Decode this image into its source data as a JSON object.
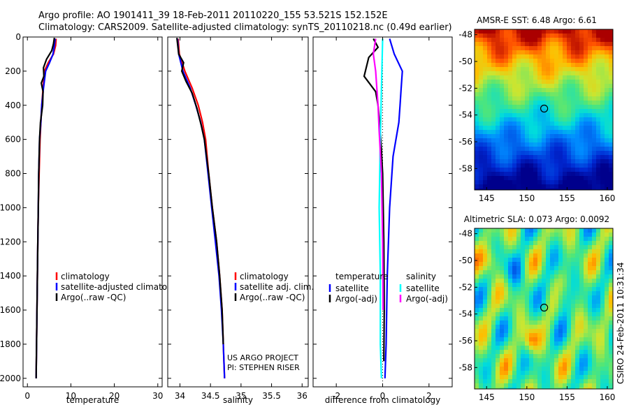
{
  "header": {
    "line1": "Argo profile: AO 1901411_39 18-Feb-2011 20110220_155 53.521S 152.152E",
    "line2": "Climatology: CARS2009. Satellite-adjusted climatology: synTS_20110218.nc (0.49d earlier)"
  },
  "side_label": "CSIRO 24-Feb-2011 10:31:34",
  "colors": {
    "red": "#ff0000",
    "blue": "#0000ff",
    "black": "#000000",
    "cyan": "#00ffff",
    "magenta": "#ff00ff"
  },
  "chart_data": [
    {
      "type": "line",
      "id": "temperature",
      "xlabel": "temperature",
      "ylabel": "",
      "xlim": [
        -1,
        31
      ],
      "ylim": [
        2050,
        0
      ],
      "xticks": [
        0,
        10,
        20,
        30
      ],
      "yticks": [
        0,
        200,
        400,
        600,
        800,
        1000,
        1200,
        1400,
        1600,
        1800,
        2000
      ],
      "legend": [
        "climatology",
        "satellite-adjusted climatology",
        "Argo(..raw -QC)"
      ],
      "legend_placement": "bottom-right",
      "series": [
        {
          "name": "climatology",
          "color": "red",
          "points": [
            [
              6.6,
              10
            ],
            [
              6.5,
              50
            ],
            [
              6.0,
              100
            ],
            [
              4.8,
              150
            ],
            [
              3.9,
              200
            ],
            [
              3.6,
              300
            ],
            [
              3.3,
              400
            ],
            [
              3.1,
              500
            ],
            [
              2.9,
              600
            ],
            [
              2.7,
              800
            ],
            [
              2.5,
              1000
            ],
            [
              2.4,
              1200
            ],
            [
              2.3,
              1400
            ],
            [
              2.2,
              1600
            ],
            [
              2.1,
              1800
            ],
            [
              2.0,
              2000
            ]
          ]
        },
        {
          "name": "satellite-adjusted climatology",
          "color": "blue",
          "points": [
            [
              6.4,
              10
            ],
            [
              6.2,
              50
            ],
            [
              5.9,
              100
            ],
            [
              5.1,
              150
            ],
            [
              4.2,
              200
            ],
            [
              3.7,
              300
            ],
            [
              3.3,
              400
            ],
            [
              3.1,
              500
            ],
            [
              2.8,
              600
            ],
            [
              2.6,
              800
            ],
            [
              2.5,
              1000
            ],
            [
              2.4,
              1200
            ],
            [
              2.3,
              1400
            ],
            [
              2.2,
              1600
            ],
            [
              2.1,
              1800
            ],
            [
              2.0,
              2000
            ]
          ]
        },
        {
          "name": "Argo(..raw -QC)",
          "color": "black",
          "points": [
            [
              6.2,
              5
            ],
            [
              6.0,
              40
            ],
            [
              5.6,
              80
            ],
            [
              4.4,
              130
            ],
            [
              3.7,
              180
            ],
            [
              3.8,
              230
            ],
            [
              3.2,
              270
            ],
            [
              3.6,
              320
            ],
            [
              3.5,
              400
            ],
            [
              3.0,
              500
            ],
            [
              2.8,
              600
            ],
            [
              2.6,
              800
            ],
            [
              2.5,
              1000
            ],
            [
              2.4,
              1200
            ],
            [
              2.3,
              1400
            ],
            [
              2.2,
              1600
            ],
            [
              2.1,
              1800
            ],
            [
              2.0,
              2000
            ]
          ]
        }
      ]
    },
    {
      "type": "line",
      "id": "salinity",
      "xlabel": "salinity",
      "ylabel": "",
      "xlim": [
        33.8,
        36.1
      ],
      "ylim": [
        2050,
        0
      ],
      "xticks": [
        34,
        34.5,
        35,
        35.5,
        36
      ],
      "legend": [
        "climatology",
        "satellite adj. clim.",
        "Argo(..raw -QC)"
      ],
      "legend_placement": "bottom-right",
      "annotations": [
        "US ARGO PROJECT",
        "PI: STEPHEN RISER"
      ],
      "series": [
        {
          "name": "climatology",
          "color": "red",
          "points": [
            [
              33.97,
              10
            ],
            [
              33.99,
              100
            ],
            [
              34.08,
              200
            ],
            [
              34.2,
              300
            ],
            [
              34.3,
              400
            ],
            [
              34.37,
              500
            ],
            [
              34.42,
              600
            ],
            [
              34.47,
              800
            ],
            [
              34.53,
              1000
            ],
            [
              34.6,
              1200
            ],
            [
              34.65,
              1400
            ],
            [
              34.69,
              1600
            ],
            [
              34.71,
              1800
            ],
            [
              34.73,
              2000
            ]
          ]
        },
        {
          "name": "satellite adj. clim.",
          "color": "blue",
          "points": [
            [
              33.96,
              10
            ],
            [
              33.98,
              100
            ],
            [
              34.05,
              200
            ],
            [
              34.17,
              300
            ],
            [
              34.26,
              400
            ],
            [
              34.34,
              500
            ],
            [
              34.4,
              600
            ],
            [
              34.46,
              800
            ],
            [
              34.52,
              1000
            ],
            [
              34.58,
              1200
            ],
            [
              34.64,
              1400
            ],
            [
              34.68,
              1600
            ],
            [
              34.71,
              1800
            ],
            [
              34.73,
              2000
            ]
          ]
        },
        {
          "name": "Argo(..raw -QC)",
          "color": "black",
          "points": [
            [
              33.95,
              5
            ],
            [
              33.98,
              100
            ],
            [
              34.06,
              150
            ],
            [
              34.03,
              200
            ],
            [
              34.1,
              260
            ],
            [
              34.2,
              330
            ],
            [
              34.28,
              420
            ],
            [
              34.35,
              520
            ],
            [
              34.4,
              600
            ],
            [
              34.47,
              800
            ],
            [
              34.53,
              1000
            ],
            [
              34.6,
              1200
            ],
            [
              34.65,
              1400
            ],
            [
              34.69,
              1600
            ],
            [
              34.71,
              1800
            ]
          ]
        }
      ]
    },
    {
      "type": "line",
      "id": "difference",
      "xlabel": "difference from climatology",
      "ylabel": "",
      "xlim": [
        -3,
        3
      ],
      "ylim": [
        2050,
        0
      ],
      "xticks": [
        -2,
        0,
        2
      ],
      "legend_headers": [
        "temperature",
        "salinity"
      ],
      "legend": [
        "satellite",
        "Argo(-adj)",
        "satellite",
        "Argo(-adj)"
      ],
      "legend_placement": "bottom",
      "series": [
        {
          "name": "satellite",
          "color": "blue",
          "points": [
            [
              0.3,
              10
            ],
            [
              0.5,
              100
            ],
            [
              0.85,
              200
            ],
            [
              0.8,
              300
            ],
            [
              0.75,
              400
            ],
            [
              0.7,
              500
            ],
            [
              0.45,
              700
            ],
            [
              0.3,
              1000
            ],
            [
              0.2,
              1400
            ],
            [
              0.15,
              1800
            ],
            [
              0.1,
              2000
            ]
          ]
        },
        {
          "name": "Argo(-adj)",
          "color": "black",
          "points": [
            [
              -0.4,
              10
            ],
            [
              -0.2,
              60
            ],
            [
              -0.6,
              120
            ],
            [
              -0.8,
              230
            ],
            [
              -0.3,
              320
            ],
            [
              -0.2,
              400
            ],
            [
              -0.1,
              550
            ],
            [
              0.0,
              800
            ],
            [
              0.05,
              1200
            ],
            [
              0.07,
              1600
            ],
            [
              0.05,
              1900
            ]
          ]
        },
        {
          "name": "satellite",
          "color": "cyan",
          "points": [
            [
              0.0,
              10
            ],
            [
              -0.05,
              300
            ],
            [
              -0.1,
              600
            ],
            [
              -0.15,
              1000
            ],
            [
              -0.1,
              1400
            ],
            [
              -0.1,
              1800
            ],
            [
              -0.05,
              2000
            ]
          ]
        },
        {
          "name": "Argo(-adj)",
          "color": "magenta",
          "points": [
            [
              -0.3,
              10
            ],
            [
              -0.4,
              100
            ],
            [
              -0.3,
              200
            ],
            [
              -0.25,
              300
            ],
            [
              -0.2,
              400
            ],
            [
              -0.15,
              550
            ],
            [
              -0.05,
              800
            ],
            [
              0.0,
              1200
            ],
            [
              0.02,
              1600
            ]
          ]
        }
      ]
    },
    {
      "type": "heatmap",
      "id": "amsre_sst",
      "title": "AMSR-E SST: 6.48 Argo: 6.61",
      "xlim": [
        143.5,
        160.7
      ],
      "ylim": [
        -59.6,
        -47.6
      ],
      "xticks": [
        145,
        150,
        155,
        160
      ],
      "yticks": [
        -48,
        -50,
        -52,
        -54,
        -56,
        -58
      ],
      "argo_position": [
        152.152,
        -53.521
      ]
    },
    {
      "type": "heatmap",
      "id": "altimetric_sla",
      "title": "Altimetric SLA: 0.073 Argo: 0.0092",
      "xlim": [
        143.5,
        160.7
      ],
      "ylim": [
        -59.6,
        -47.6
      ],
      "xticks": [
        145,
        150,
        155,
        160
      ],
      "yticks": [
        -48,
        -50,
        -52,
        -54,
        -56,
        -58
      ],
      "argo_position": [
        152.152,
        -53.521
      ]
    }
  ]
}
